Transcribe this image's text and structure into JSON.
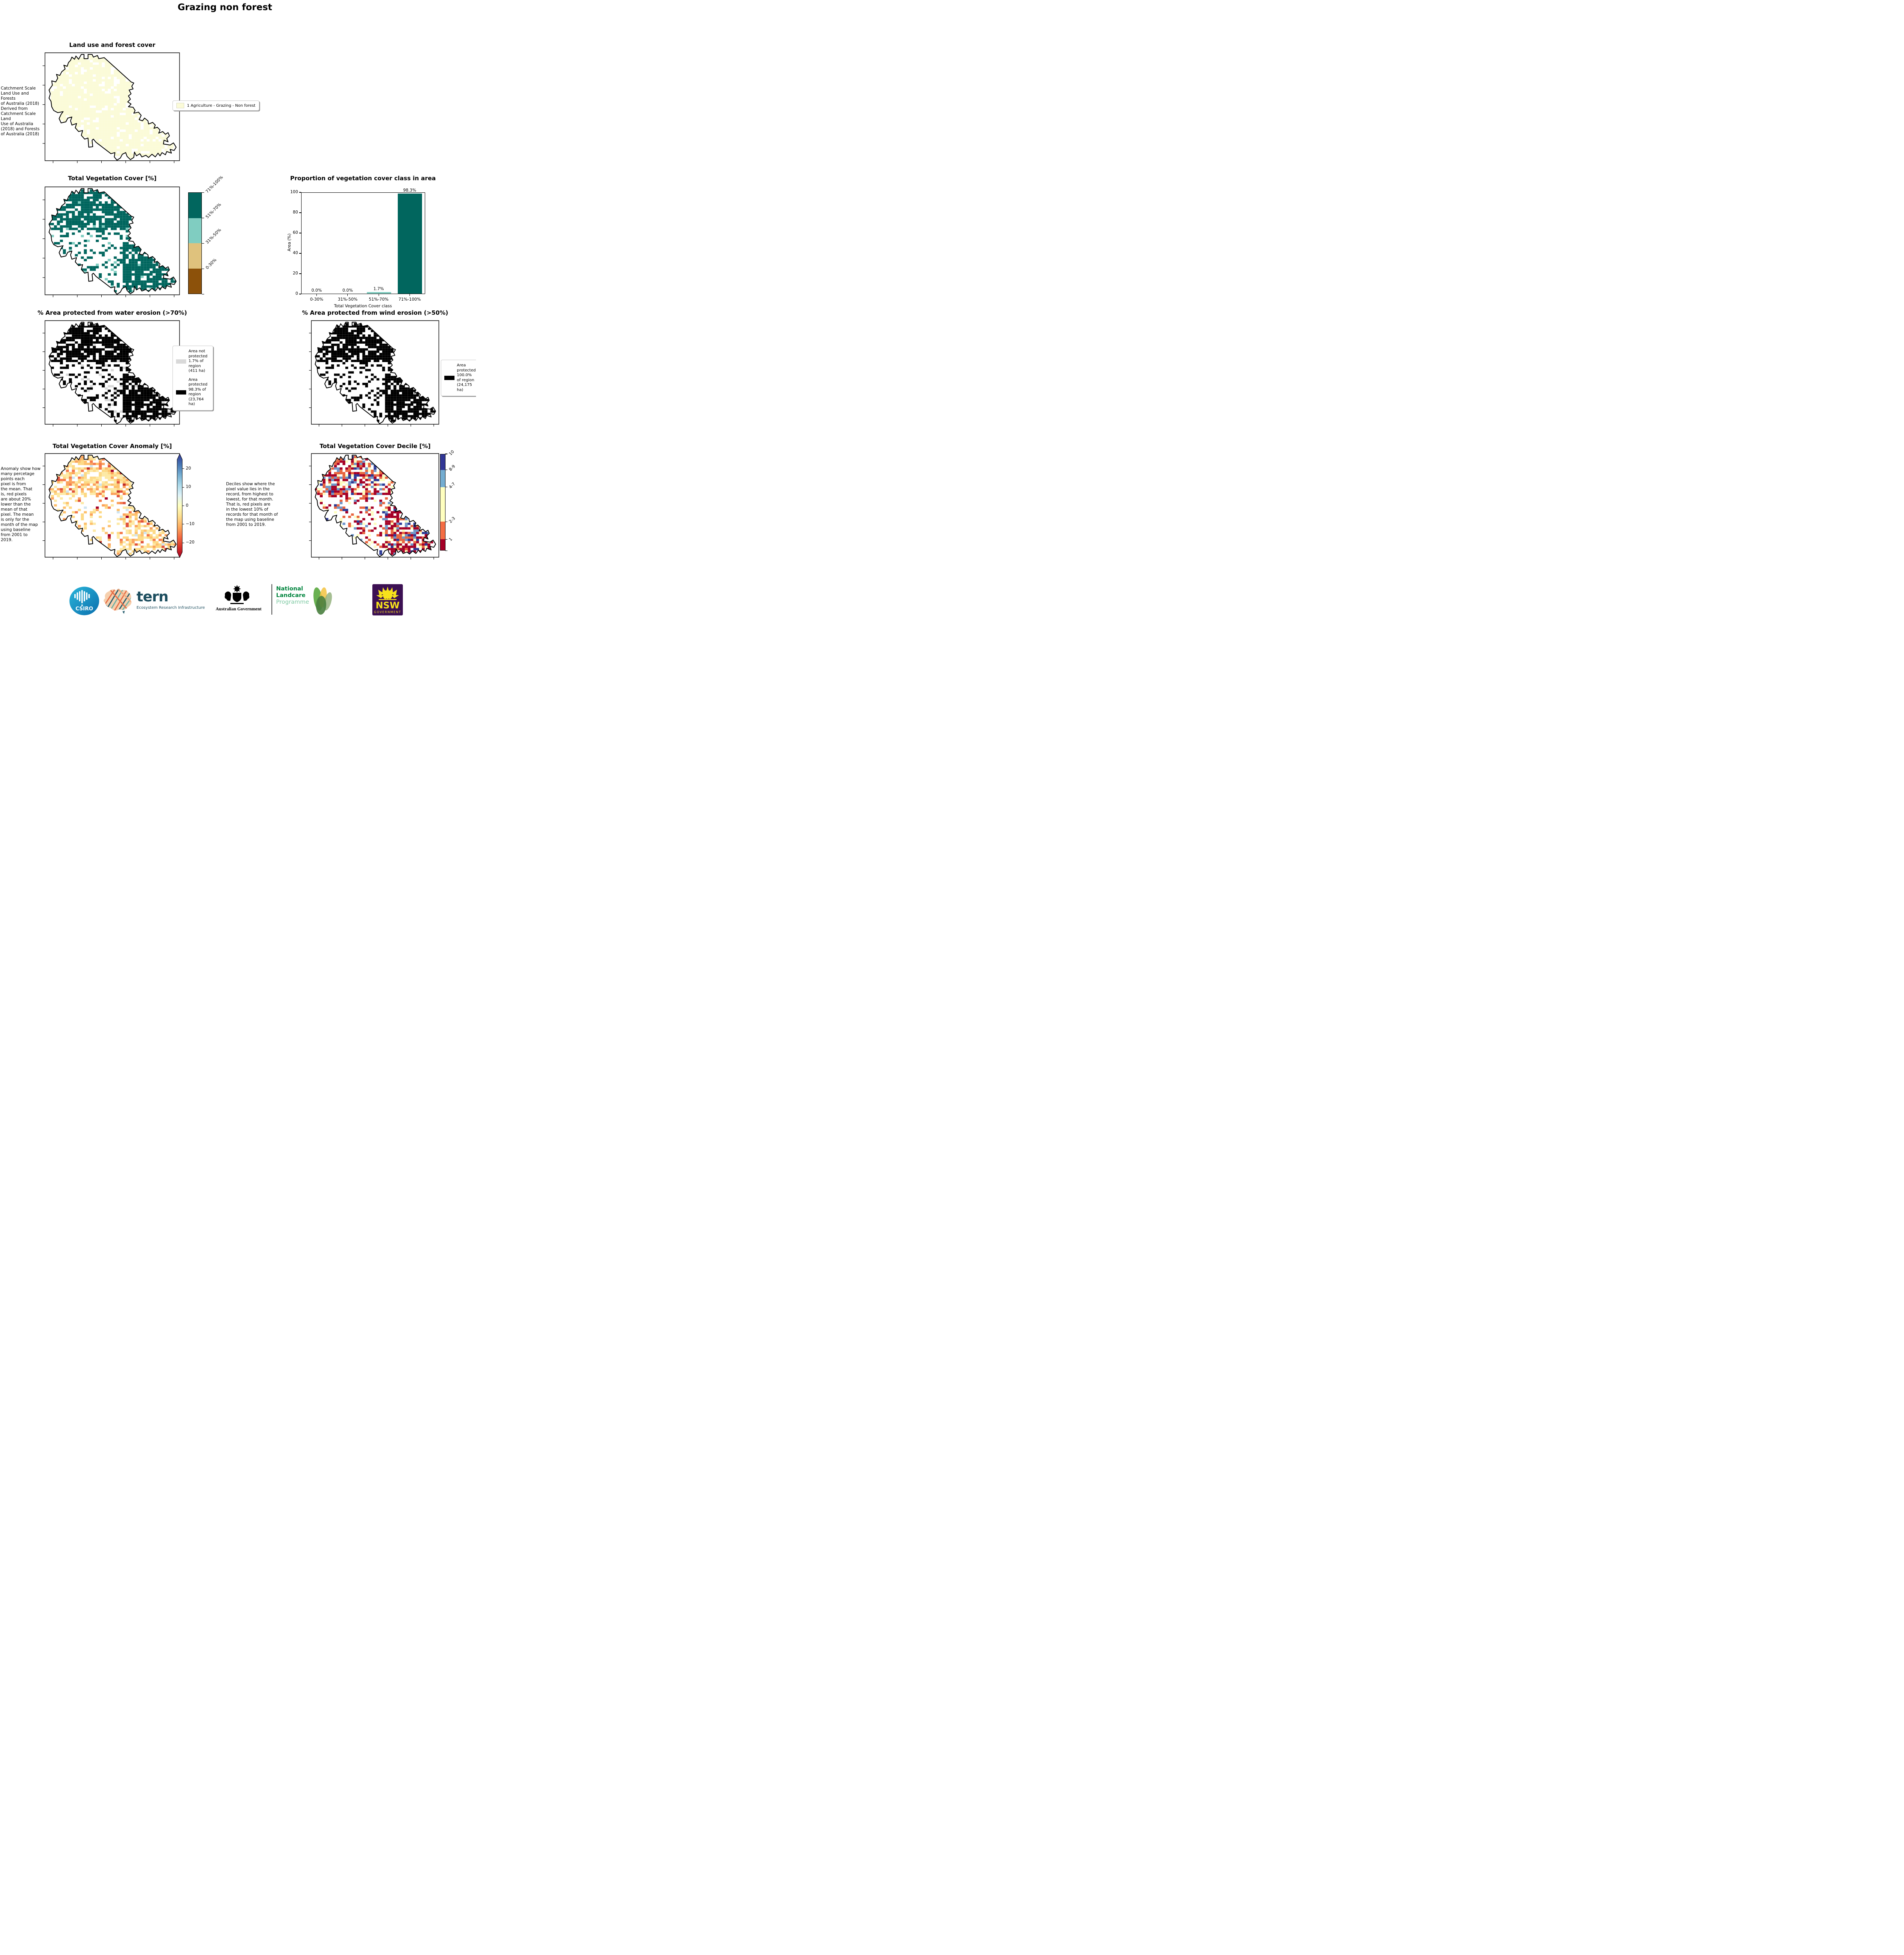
{
  "page_title": "Grazing non forest",
  "panels": {
    "landuse": {
      "title": "Land use and forest cover",
      "side_text": " Catchment Scale\nLand Use and Forests\nof Australia (2018)\nDerived from\nCatchment Scale Land\nUse of Australia\n(2018) and Forests\nof Australia (2018)",
      "legend": {
        "label": "1 Agriculture - Grazing - Non forest",
        "swatch_color": "#fbfbd8"
      }
    },
    "tvc": {
      "title": "Total Vegetation Cover [%]",
      "colorbar": {
        "classes": [
          {
            "label": "71%-100%",
            "color": "#01665e"
          },
          {
            "label": "51%-70%",
            "color": "#80cdc1"
          },
          {
            "label": "31%-50%",
            "color": "#dfc27d"
          },
          {
            "label": "0-30%",
            "color": "#8c510a"
          }
        ]
      }
    },
    "water": {
      "title": "% Area protected from water erosion (>70%)",
      "legend": [
        {
          "label": "Area not protected 1.7% of region (411 ha)",
          "color": "#d9d9d9"
        },
        {
          "label": "Area protected 98.3% of region (23,764 ha)",
          "color": "#000000"
        }
      ]
    },
    "wind": {
      "title": "% Area protected from wind erosion (>50%)",
      "legend": [
        {
          "label": "Area protected 100.0% of region (24,175 ha)",
          "color": "#000000"
        }
      ]
    },
    "anomaly": {
      "title": "Total Vegetation Cover Anomaly [%]",
      "side_text": "Anomaly show how\nmany percetage\npoints each\npixel is from\nthe mean. That\nis, red pixels\nare about 20%\nlower than the\nmean of that\npixel. The mean\nis only for the\nmonth of the map\nusing baseline\nfrom 2001 to\n2019.",
      "colorbar_ticks": [
        "20",
        "10",
        "0",
        "−10",
        "−20"
      ]
    },
    "decile": {
      "title": "Total Vegetation Cover Decile [%]",
      "side_text": "Deciles show where the\npixel value lies in the\nrecord, from highest to\nlowest, for that month.\nThat is, red pixels are\nin the lowest 10% of\nrecords for that month of\nthe map using baseline\nfrom 2001 to 2019.",
      "colorbar": [
        {
          "label": "10",
          "color": "#313695",
          "height_pct": 16.3
        },
        {
          "label": "8-9",
          "color": "#74add1",
          "height_pct": 18.0
        },
        {
          "label": "4-7",
          "color": "#ffffbf",
          "height_pct": 35.9
        },
        {
          "label": "2-3",
          "color": "#f46d43",
          "height_pct": 18.4
        },
        {
          "label": "1",
          "color": "#a50026",
          "height_pct": 11.4
        }
      ]
    }
  },
  "chart_data": {
    "type": "bar",
    "title": "Proportion of vegetation cover class in area",
    "categories": [
      "0-30%",
      "31%-50%",
      "51%-70%",
      "71%-100%"
    ],
    "values": [
      0.0,
      0.0,
      1.7,
      98.3
    ],
    "value_labels": [
      "0.0%",
      "0.0%",
      "1.7%",
      "98.3%"
    ],
    "bar_colors": [
      "#01665e",
      "#01665e",
      "#80cdc1",
      "#01665e"
    ],
    "xlabel": "Total Vegetation Cover class",
    "ylabel": "Area (%)",
    "ylim": [
      0,
      100
    ],
    "yticks": [
      0,
      20,
      40,
      60,
      80,
      100
    ],
    "grid": false,
    "legend_position": "none"
  },
  "colors": {
    "brbg_dark_teal": "#01665e",
    "brbg_light_teal": "#80cdc1",
    "brbg_tan": "#dfc27d",
    "brbg_brown": "#8c510a",
    "landuse_fill": "#fbfbd8",
    "protected_black": "#000000",
    "not_protected_gray": "#d9d9d9",
    "anomaly_gradient": [
      "#313695",
      "#4575b4",
      "#74add1",
      "#abd9e9",
      "#e0f3f8",
      "#ffffbf",
      "#fee090",
      "#fdae61",
      "#f46d43",
      "#d73027",
      "#a50026"
    ],
    "decile_colors": [
      "#313695",
      "#74add1",
      "#ffffbf",
      "#f46d43",
      "#a50026"
    ]
  },
  "footer": {
    "csiro_label": "CSIRO",
    "tern_label": "tern",
    "tern_sub": "Ecosystem Research Infrastructure",
    "aus_gov": "Australian Government",
    "landcare_line1": "National",
    "landcare_line2": "Landcare",
    "landcare_line3": "Programme",
    "nsw_label": "NSW",
    "nsw_sub": "GOVERNMENT"
  }
}
